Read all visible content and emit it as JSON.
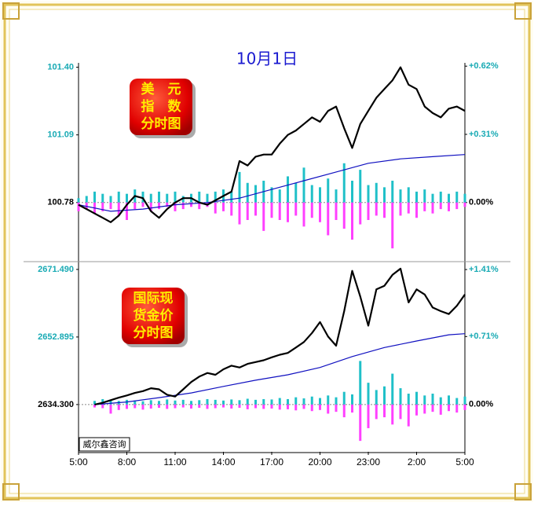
{
  "chart_data": [
    {
      "type": "line",
      "title": "10月1日",
      "label": [
        "美　元",
        "指　数",
        "分时图"
      ],
      "ylim": [
        100.52,
        101.42
      ],
      "yticks": [
        {
          "value": 101.4,
          "label": "101.40"
        },
        101.09,
        100.78
      ],
      "y2lim": [
        -0.258,
        0.635
      ],
      "y2ticks": [
        {
          "value": 0.62,
          "label": "+0.62%"
        },
        {
          "value": 0.31,
          "label": "+0.31%"
        },
        {
          "value": 0,
          "label": "0.00%"
        }
      ],
      "xlim": [
        0,
        24
      ],
      "color": "#000000",
      "x": [
        0,
        0.5,
        1,
        1.5,
        2,
        2.5,
        3,
        3.5,
        4,
        4.5,
        5,
        5.5,
        6,
        6.5,
        7,
        7.5,
        8,
        8.5,
        9,
        9.5,
        10,
        10.5,
        11,
        11.5,
        12,
        12.5,
        13,
        13.5,
        14,
        14.5,
        15,
        15.5,
        16,
        16.5,
        17,
        17.5,
        18,
        18.5,
        19,
        19.5,
        20,
        20.5,
        21,
        21.5,
        22,
        22.5,
        23,
        23.5,
        24
      ],
      "values": [
        100.77,
        100.75,
        100.73,
        100.71,
        100.69,
        100.72,
        100.77,
        100.81,
        100.8,
        100.74,
        100.71,
        100.75,
        100.78,
        100.8,
        100.8,
        100.78,
        100.77,
        100.79,
        100.81,
        100.83,
        100.97,
        100.95,
        100.99,
        101.0,
        101.0,
        101.05,
        101.09,
        101.11,
        101.14,
        101.17,
        101.15,
        101.2,
        101.22,
        101.12,
        101.03,
        101.14,
        101.2,
        101.26,
        101.3,
        101.34,
        101.4,
        101.32,
        101.3,
        101.22,
        101.19,
        101.17,
        101.21,
        101.22,
        101.2
      ],
      "bars_up": [
        0.02,
        0.03,
        0.05,
        0.04,
        0.03,
        0.05,
        0.04,
        0.06,
        0.05,
        0.04,
        0.05,
        0.04,
        0.05,
        0.03,
        0.04,
        0.05,
        0.04,
        0.05,
        0.06,
        0.05,
        0.14,
        0.09,
        0.08,
        0.1,
        0.07,
        0.06,
        0.12,
        0.09,
        0.16,
        0.08,
        0.07,
        0.11,
        0.06,
        0.18,
        0.1,
        0.15,
        0.08,
        0.09,
        0.07,
        0.1,
        0.06,
        0.07,
        0.05,
        0.06,
        0.04,
        0.05,
        0.04,
        0.05,
        0.04
      ],
      "bars_down": [
        -0.04,
        -0.03,
        -0.05,
        -0.04,
        -0.03,
        -0.06,
        -0.08,
        -0.03,
        -0.02,
        -0.04,
        -0.03,
        -0.02,
        -0.04,
        -0.03,
        -0.02,
        -0.03,
        -0.02,
        -0.05,
        -0.04,
        -0.06,
        -0.1,
        -0.08,
        -0.06,
        -0.13,
        -0.07,
        -0.08,
        -0.09,
        -0.06,
        -0.11,
        -0.07,
        -0.09,
        -0.15,
        -0.08,
        -0.12,
        -0.17,
        -0.1,
        -0.08,
        -0.06,
        -0.07,
        -0.21,
        -0.06,
        -0.05,
        -0.07,
        -0.04,
        -0.05,
        -0.03,
        -0.04,
        -0.03,
        -0.02
      ],
      "up_color": "#20c0c8",
      "down_color": "#ff40ff",
      "average": {
        "color": "#1010c0",
        "x": [
          0,
          2,
          4,
          6,
          8,
          10,
          12,
          14,
          16,
          18,
          20,
          22,
          24
        ],
        "values": [
          100.77,
          100.74,
          100.75,
          100.77,
          100.78,
          100.8,
          100.84,
          100.88,
          100.92,
          100.96,
          100.98,
          100.99,
          101.0
        ]
      }
    },
    {
      "type": "line",
      "label": [
        "国际现",
        "货金价",
        "分时图"
      ],
      "note": "威尔鑫咨询",
      "ylim": [
        2621.3,
        2673.2
      ],
      "yticks": [
        {
          "value": 2671.49,
          "label": "2671.490"
        },
        2652.895,
        {
          "value": 2634.3,
          "label": "2634.300"
        }
      ],
      "y2lim": [
        -0.494,
        1.476
      ],
      "y2ticks": [
        {
          "value": 1.41,
          "label": "+1.41%"
        },
        {
          "value": 0.71,
          "label": "+0.71%"
        },
        {
          "value": 0,
          "label": "0.00%"
        }
      ],
      "xlim": [
        0,
        24
      ],
      "xticks": [
        {
          "value": 0,
          "label": "5:00"
        },
        {
          "value": 3,
          "label": "8:00"
        },
        {
          "value": 6,
          "label": "11:00"
        },
        {
          "value": 9,
          "label": "14:00"
        },
        {
          "value": 12,
          "label": "17:00"
        },
        {
          "value": 15,
          "label": "20:00"
        },
        {
          "value": 18,
          "label": "23:00"
        },
        {
          "value": 21,
          "label": "2:00"
        },
        {
          "value": 24,
          "label": "5:00"
        }
      ],
      "color": "#000000",
      "x": [
        1,
        1.5,
        2,
        2.5,
        3,
        3.5,
        4,
        4.5,
        5,
        5.5,
        6,
        6.5,
        7,
        7.5,
        8,
        8.5,
        9,
        9.5,
        10,
        10.5,
        11,
        11.5,
        12,
        12.5,
        13,
        13.5,
        14,
        14.5,
        15,
        15.5,
        16,
        16.5,
        17,
        17.5,
        18,
        18.5,
        19,
        19.5,
        20,
        20.5,
        21,
        21.5,
        22,
        22.5,
        23,
        23.5,
        24
      ],
      "values": [
        2634.3,
        2634.8,
        2635.5,
        2636.2,
        2636.8,
        2637.5,
        2638.0,
        2638.8,
        2638.5,
        2637.0,
        2636.5,
        2638.5,
        2640.5,
        2642.0,
        2643.0,
        2642.5,
        2644.0,
        2645.0,
        2644.5,
        2645.5,
        2646.0,
        2646.5,
        2647.3,
        2648.0,
        2648.5,
        2650.0,
        2651.5,
        2654.0,
        2657.0,
        2653.0,
        2650.5,
        2660.0,
        2671.1,
        2664.0,
        2656.0,
        2666.0,
        2667.0,
        2670.0,
        2671.7,
        2662.4,
        2666.0,
        2664.6,
        2661.0,
        2660.0,
        2659.2,
        2661.5,
        2664.6
      ],
      "bars_up": [
        1.0,
        1.5,
        1.2,
        1.0,
        1.3,
        1.1,
        0.9,
        1.2,
        1.0,
        1.4,
        1.1,
        1.3,
        1.0,
        1.2,
        1.5,
        1.3,
        1.1,
        1.4,
        1.2,
        1.6,
        1.3,
        1.5,
        1.4,
        1.8,
        1.5,
        2.0,
        1.7,
        2.2,
        1.8,
        2.5,
        2.0,
        3.5,
        2.8,
        12.0,
        6.0,
        4.0,
        5.0,
        8.5,
        4.5,
        3.0,
        3.5,
        2.5,
        3.0,
        2.0,
        2.5,
        1.8,
        2.2
      ],
      "bars_down": [
        -0.8,
        -1.0,
        -2.5,
        -1.5,
        -1.2,
        -1.0,
        -1.4,
        -1.1,
        -0.9,
        -1.2,
        -1.0,
        -0.8,
        -1.1,
        -0.9,
        -1.2,
        -1.0,
        -0.8,
        -1.1,
        -0.9,
        -1.3,
        -1.0,
        -1.2,
        -1.1,
        -1.4,
        -1.3,
        -1.6,
        -1.2,
        -1.8,
        -1.5,
        -2.5,
        -2.0,
        -3.5,
        -2.2,
        -10.0,
        -6.5,
        -4.0,
        -3.5,
        -5.5,
        -4.0,
        -6.0,
        -3.0,
        -2.5,
        -2.0,
        -2.8,
        -1.8,
        -2.2,
        -1.5
      ],
      "up_color": "#20c0c8",
      "down_color": "#ff40ff",
      "average": {
        "color": "#1010c0",
        "x": [
          1,
          3,
          5,
          7,
          9,
          11,
          13,
          15,
          17,
          19,
          21,
          23,
          24
        ],
        "values": [
          2634.3,
          2635.0,
          2636.2,
          2637.5,
          2639.3,
          2641.0,
          2642.5,
          2644.5,
          2647.5,
          2650.0,
          2651.8,
          2653.5,
          2653.8
        ]
      }
    }
  ]
}
